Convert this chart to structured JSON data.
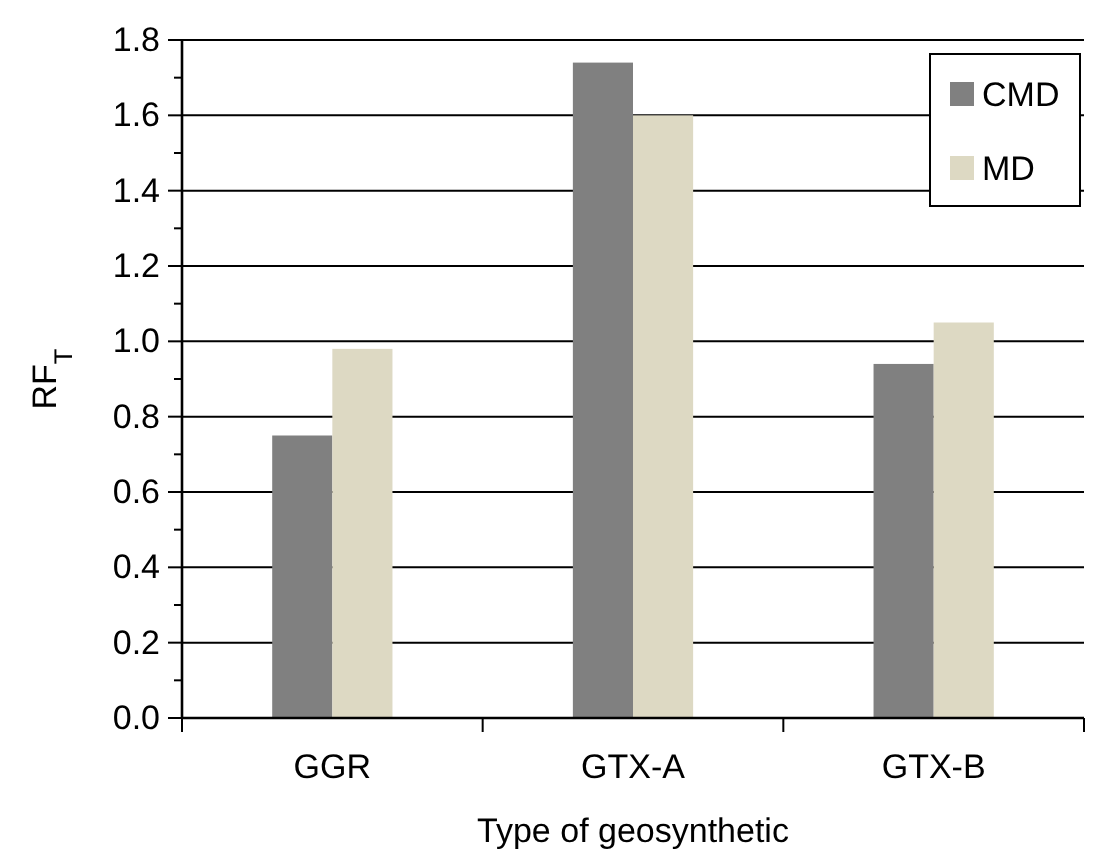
{
  "chart_data": {
    "type": "bar",
    "xlabel": "Type of geosynthetic",
    "ylabel": "RF$_{T}$",
    "categories": [
      "GGR",
      "GTX-A",
      "GTX-B"
    ],
    "series": [
      {
        "name": "CMD",
        "color": "#808080",
        "values": [
          0.75,
          1.74,
          0.94
        ]
      },
      {
        "name": "MD",
        "color": "#ddd9c3",
        "values": [
          0.98,
          1.6,
          1.05
        ]
      }
    ],
    "ylim": [
      0,
      1.8
    ],
    "yticks": [
      {
        "value": 0,
        "label": "0.0"
      },
      {
        "value": 0.1,
        "label": null
      },
      {
        "value": 0.2,
        "label": "0.2"
      },
      {
        "value": 0.3,
        "label": null
      },
      {
        "value": 0.4,
        "label": "0.4"
      },
      {
        "value": 0.5,
        "label": null
      },
      {
        "value": 0.6,
        "label": "0.6"
      },
      {
        "value": 0.7,
        "label": null
      },
      {
        "value": 0.8,
        "label": "0.8"
      },
      {
        "value": 0.9,
        "label": null
      },
      {
        "value": 1,
        "label": "1.0"
      },
      {
        "value": 1.1,
        "label": null
      },
      {
        "value": 1.2,
        "label": "1.2"
      },
      {
        "value": 1.3,
        "label": null
      },
      {
        "value": 1.4,
        "label": "1.4"
      },
      {
        "value": 1.5,
        "label": null
      },
      {
        "value": 1.6,
        "label": "1.6"
      },
      {
        "value": 1.7,
        "label": null
      },
      {
        "value": 1.8,
        "label": "1.8"
      }
    ],
    "grid": "y",
    "legend": "top right"
  }
}
